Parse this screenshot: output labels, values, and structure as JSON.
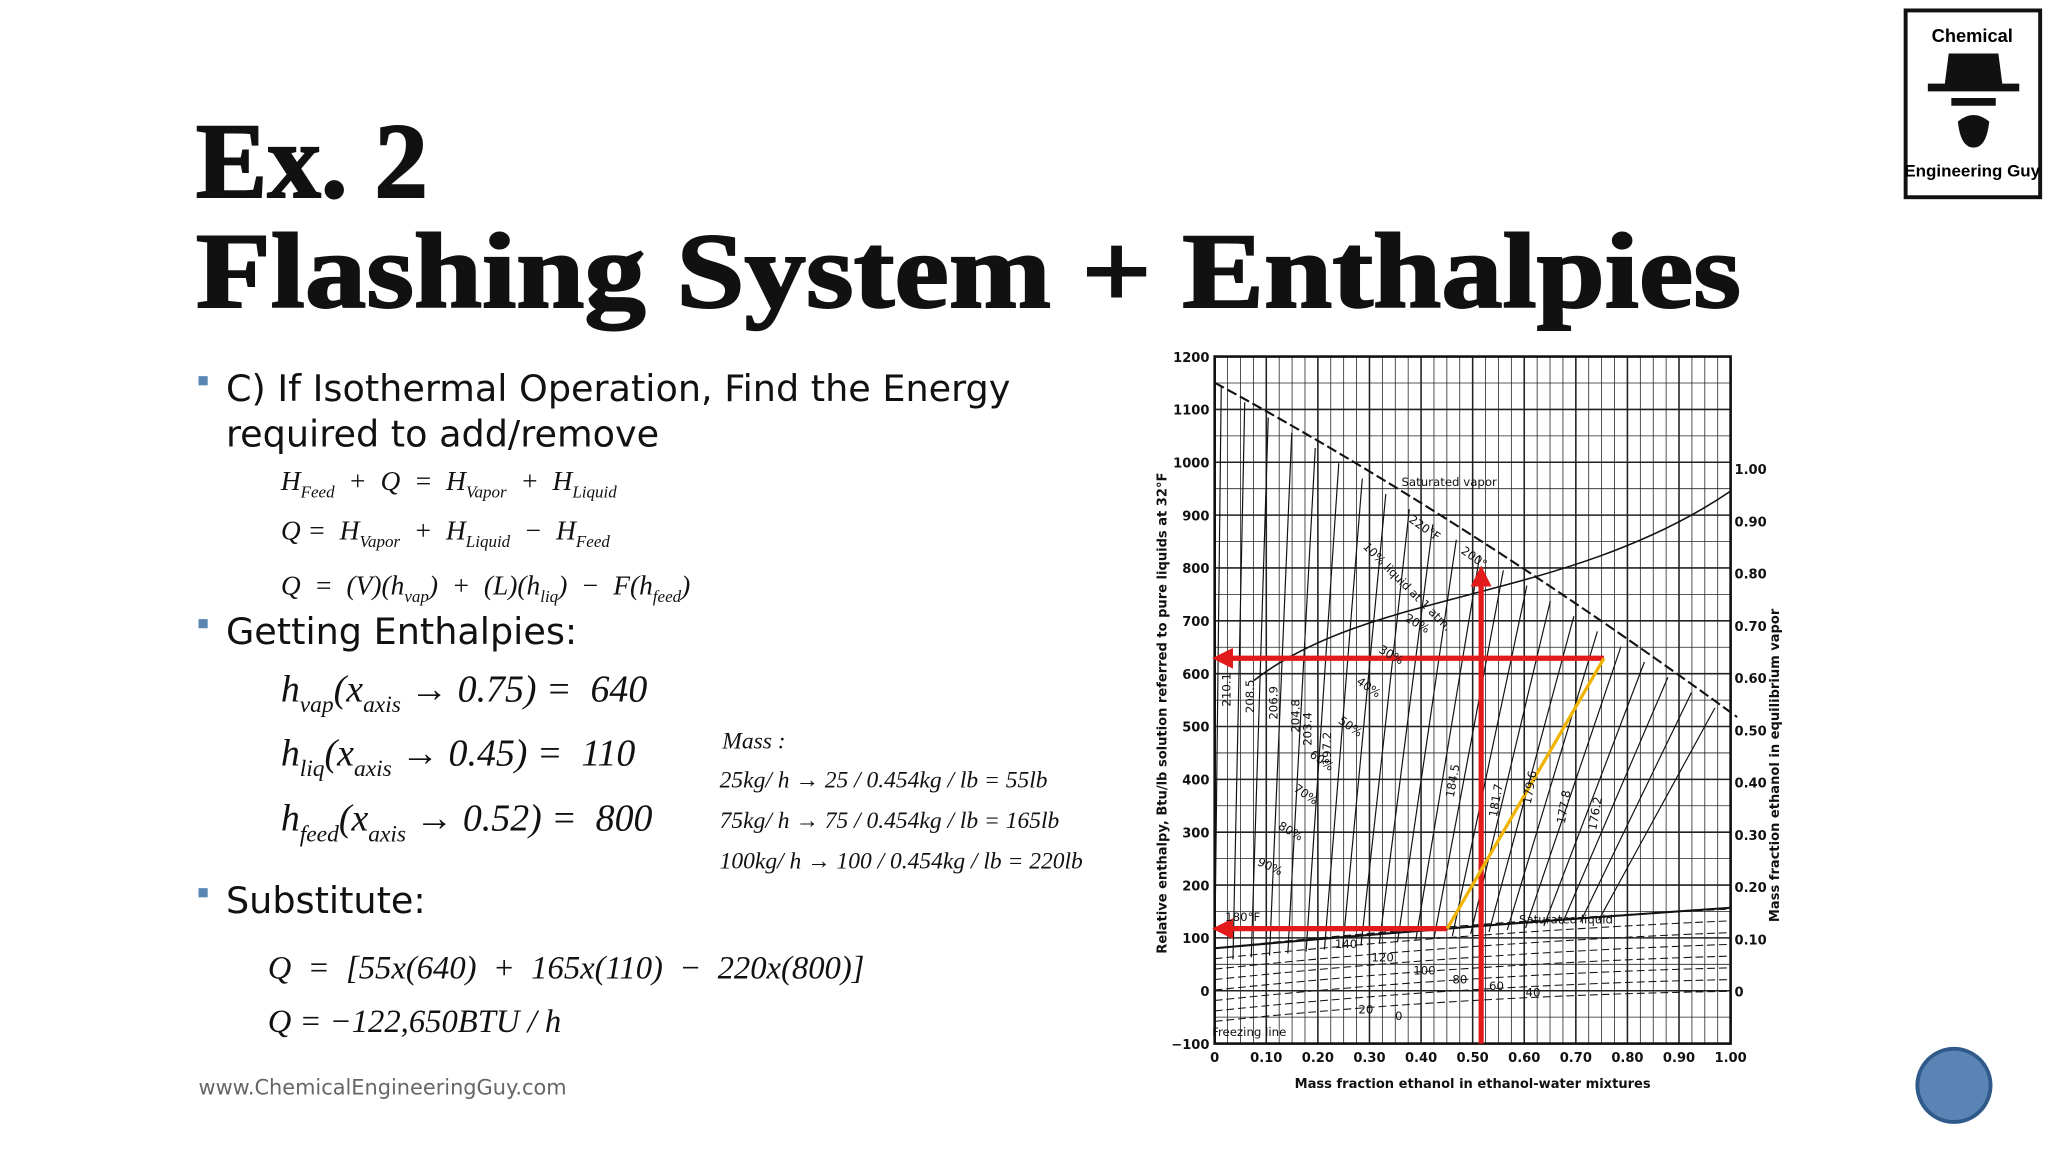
{
  "title": {
    "line1": "Ex. 2",
    "line2": "Flashing System + Enthalpies"
  },
  "logo": {
    "top": "Chemical",
    "bottom": "Engineering Guy"
  },
  "bullets": [
    {
      "lines": [
        "C) If Isothermal Operation, Find the Energy",
        "required to add/remove"
      ]
    },
    {
      "lines": [
        "Getting Enthalpies:"
      ]
    },
    {
      "lines": [
        "Substitute:"
      ]
    }
  ],
  "balance_equations": [
    {
      "parts": [
        "H",
        "Feed",
        "  +  Q  =  H",
        "Vapor",
        "  +  H",
        "Liquid"
      ]
    },
    {
      "parts": [
        "Q =  H",
        "Vapor",
        "  +  H",
        "Liquid",
        "  −  H",
        "Feed"
      ]
    },
    {
      "parts": [
        "Q  =  (V)(h",
        "vap",
        ")  +  (L)(h",
        "liq",
        ")  −  F(h",
        "feed",
        ")"
      ]
    }
  ],
  "enthalpy_equations": [
    {
      "parts": [
        "h",
        "vap",
        "(x",
        "axis",
        " → 0.75) =  640"
      ]
    },
    {
      "parts": [
        "h",
        "liq",
        "(x",
        "axis",
        " → 0.45) =  110"
      ]
    },
    {
      "parts": [
        "h",
        "feed",
        "(x",
        "axis",
        " → 0.52) =  800"
      ]
    }
  ],
  "mass_note": {
    "label": "Mass :",
    "lines": [
      "25kg/ h → 25 / 0.454kg / lb = 55lb",
      "75kg/ h → 75 / 0.454kg / lb = 165lb",
      "100kg/ h → 100 / 0.454kg / lb = 220lb"
    ]
  },
  "substitute_equations": [
    "Q  =  [55x(640)  +  165x(110)  −  220x(800)]",
    "Q = −122,650BTU / h"
  ],
  "footer": "www.ChemicalEngineeringGuy.com",
  "diagram": {
    "y_label": "Relative enthalpy, Btu/lb solution referred to pure liquids at 32°F",
    "x_label": "Mass fraction ethanol in ethanol-water mixtures",
    "right_label": "Mass fraction ethanol in equilibrium vapor",
    "y_ticks": [
      "1200",
      "1100",
      "1000",
      "900",
      "800",
      "700",
      "600",
      "500",
      "400",
      "300",
      "200",
      "100",
      "0",
      "−100"
    ],
    "x_ticks": [
      "0",
      "0.10",
      "0.20",
      "0.30",
      "0.40",
      "0.50",
      "0.60",
      "0.70",
      "0.80",
      "0.90",
      "1.00"
    ],
    "right_ticks": [
      "1.00",
      "0.90",
      "0.80",
      "0.70",
      "0.60",
      "0.50",
      "0.40",
      "0.30",
      "0.20",
      "0.10",
      "0"
    ],
    "curve_labels": [
      "Saturated vapor",
      "Saturated liquid",
      "Freezing line",
      "220°F",
      "200°",
      "10% liquid at 1 atm.",
      "20%",
      "30%",
      "40%",
      "50%",
      "60%",
      "70%",
      "80%",
      "90%",
      "180°F",
      "210.1",
      "208.5",
      "206.9",
      "204.8",
      "203.4",
      "197.2",
      "184.5",
      "181.7",
      "179.6",
      "177.8",
      "176.2",
      "140",
      "120",
      "100",
      "80",
      "60",
      "40",
      "20",
      "0"
    ]
  }
}
